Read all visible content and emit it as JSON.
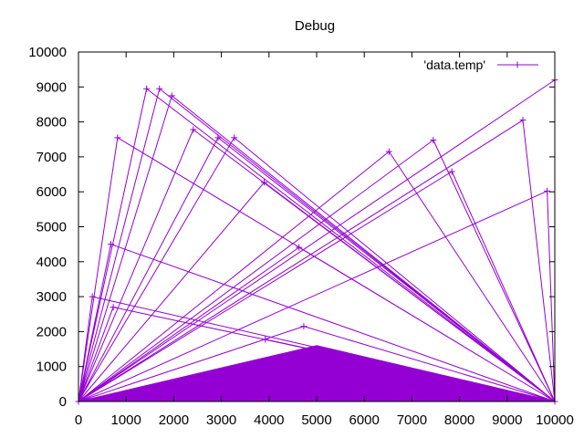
{
  "chart_data": {
    "type": "line",
    "title": "Debug",
    "xlabel": "",
    "ylabel": "",
    "xlim": [
      0,
      10000
    ],
    "ylim": [
      0,
      10000
    ],
    "grid": false,
    "legend_position": "top-right",
    "x_ticks": [
      0,
      1000,
      2000,
      3000,
      4000,
      5000,
      6000,
      7000,
      8000,
      9000,
      10000
    ],
    "y_ticks": [
      0,
      1000,
      2000,
      3000,
      4000,
      5000,
      6000,
      7000,
      8000,
      9000,
      10000
    ],
    "x_tick_labels": [
      "0",
      "1000",
      "2000",
      "3000",
      "4000",
      "5000",
      "6000",
      "7000",
      "8000",
      "9000",
      "10000"
    ],
    "y_tick_labels": [
      "0",
      "1000",
      "2000",
      "3000",
      "4000",
      "5000",
      "6000",
      "7000",
      "8000",
      "9000",
      "10000"
    ],
    "series": [
      {
        "name": "'data.temp'",
        "color": "#9400d3",
        "marker": "plus",
        "points": [
          [
            0,
            0
          ],
          [
            1430,
            8950
          ],
          [
            10000,
            0
          ],
          [
            0,
            0
          ],
          [
            1700,
            8950
          ],
          [
            10000,
            0
          ],
          [
            0,
            0
          ],
          [
            1960,
            8750
          ],
          [
            10000,
            0
          ],
          [
            0,
            0
          ],
          [
            2410,
            7780
          ],
          [
            10000,
            0
          ],
          [
            0,
            0
          ],
          [
            2930,
            7550
          ],
          [
            10000,
            0
          ],
          [
            0,
            0
          ],
          [
            3270,
            7550
          ],
          [
            10000,
            0
          ],
          [
            0,
            0
          ],
          [
            820,
            7550
          ],
          [
            10000,
            0
          ],
          [
            0,
            0
          ],
          [
            3900,
            6270
          ],
          [
            10000,
            0
          ],
          [
            0,
            0
          ],
          [
            680,
            4500
          ],
          [
            10000,
            0
          ],
          [
            0,
            0
          ],
          [
            4630,
            4410
          ],
          [
            10000,
            0
          ],
          [
            0,
            0
          ],
          [
            290,
            3000
          ],
          [
            10000,
            0
          ],
          [
            0,
            0
          ],
          [
            730,
            2700
          ],
          [
            10000,
            0
          ],
          [
            0,
            0
          ],
          [
            4730,
            2150
          ],
          [
            10000,
            0
          ],
          [
            0,
            0
          ],
          [
            3920,
            1780
          ],
          [
            10000,
            0
          ],
          [
            0,
            0
          ],
          [
            6520,
            7150
          ],
          [
            10000,
            0
          ],
          [
            0,
            0
          ],
          [
            7450,
            7480
          ],
          [
            10000,
            0
          ],
          [
            0,
            0
          ],
          [
            7840,
            6580
          ],
          [
            10000,
            0
          ],
          [
            0,
            0
          ],
          [
            9330,
            8050
          ],
          [
            10000,
            0
          ],
          [
            0,
            0
          ],
          [
            9840,
            6020
          ],
          [
            10000,
            0
          ],
          [
            0,
            0
          ],
          [
            10000,
            9200
          ],
          [
            10000,
            0
          ]
        ]
      }
    ]
  }
}
